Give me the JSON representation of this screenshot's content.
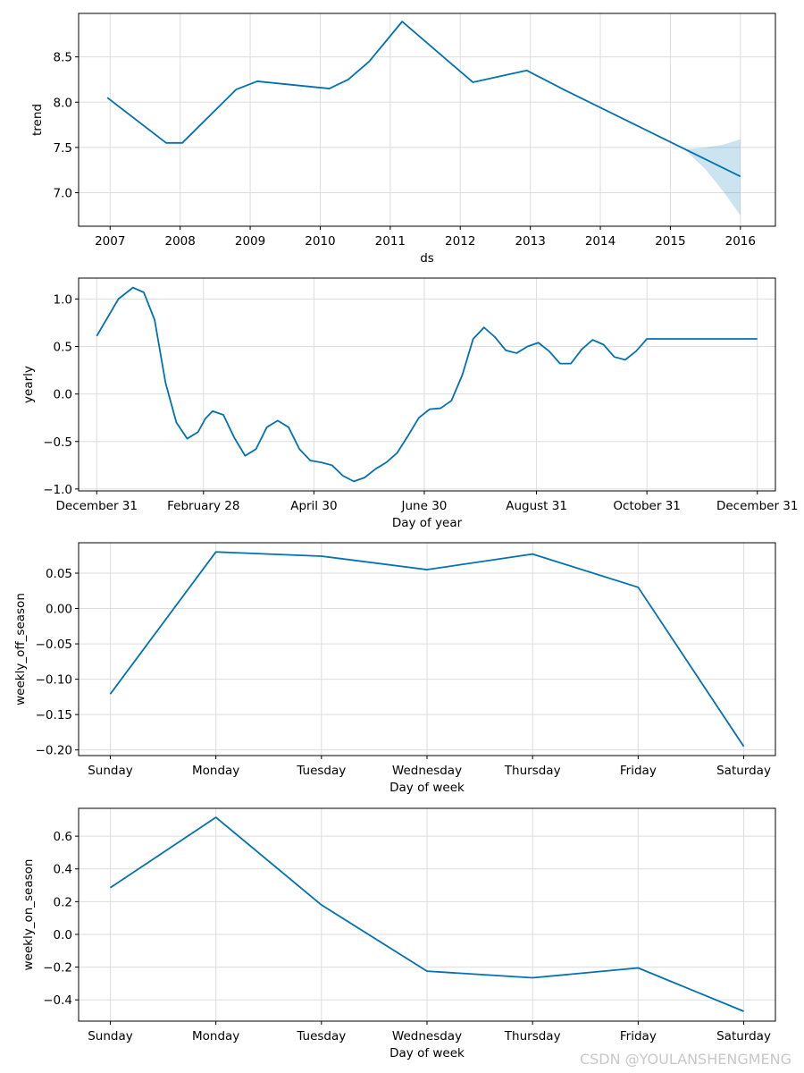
{
  "colors": {
    "line": "#0072b2",
    "band": "#0072b2",
    "grid": "#dddddd",
    "watermark": "#c8c8c8"
  },
  "watermark": "CSDN @YOULANSHENGMENG",
  "chart_data": [
    {
      "id": "trend",
      "type": "line",
      "xlabel": "ds",
      "ylabel": "trend",
      "xlim": [
        2006.55,
        2016.5
      ],
      "ylim": [
        6.63,
        8.98
      ],
      "xticks": [
        2007,
        2008,
        2009,
        2010,
        2011,
        2012,
        2013,
        2014,
        2015,
        2016
      ],
      "xtick_labels": [
        "2007",
        "2008",
        "2009",
        "2010",
        "2011",
        "2012",
        "2013",
        "2014",
        "2015",
        "2016"
      ],
      "yticks": [
        7.0,
        7.5,
        8.0,
        8.5
      ],
      "ytick_labels": [
        "7.0",
        "7.5",
        "8.0",
        "8.5"
      ],
      "grid": true,
      "series": [
        {
          "name": "trend",
          "x": [
            2006.96,
            2007.8,
            2008.03,
            2008.8,
            2009.1,
            2010.13,
            2010.4,
            2010.7,
            2011.17,
            2012.18,
            2012.95,
            2013.5,
            2014.0,
            2014.5,
            2015.0,
            2015.5,
            2016.0
          ],
          "y": [
            8.05,
            7.55,
            7.55,
            8.14,
            8.23,
            8.15,
            8.25,
            8.45,
            8.89,
            8.22,
            8.35,
            8.13,
            7.94,
            7.75,
            7.56,
            7.37,
            7.18
          ]
        }
      ],
      "uncertainty": {
        "x": [
          2015.2,
          2015.5,
          2015.75,
          2016.0
        ],
        "upper": [
          7.48,
          7.5,
          7.53,
          7.59
        ],
        "lower": [
          7.48,
          7.26,
          7.02,
          6.75
        ]
      }
    },
    {
      "id": "yearly",
      "type": "line",
      "xlabel": "Day of year",
      "ylabel": "yearly",
      "xlim": [
        -10,
        375
      ],
      "ylim": [
        -1.02,
        1.22
      ],
      "xticks": [
        0,
        59,
        120,
        181,
        243,
        304,
        365
      ],
      "xtick_labels": [
        "December 31",
        "February 28",
        "April 30",
        "June 30",
        "August 31",
        "October 31",
        "December 31"
      ],
      "yticks": [
        -1.0,
        -0.5,
        0.0,
        0.5,
        1.0
      ],
      "ytick_labels": [
        "−1.0",
        "−0.5",
        "0.0",
        "0.5",
        "1.0"
      ],
      "grid": true,
      "series": [
        {
          "name": "yearly",
          "x": [
            0,
            12,
            20,
            26,
            32,
            38,
            44,
            50,
            56,
            60,
            64,
            70,
            76,
            82,
            88,
            94,
            100,
            106,
            112,
            118,
            124,
            130,
            136,
            142,
            148,
            154,
            160,
            166,
            172,
            178,
            184,
            190,
            196,
            202,
            208,
            214,
            220,
            226,
            232,
            238,
            244,
            250,
            256,
            262,
            268,
            274,
            280,
            286,
            292,
            298,
            304,
            310,
            316,
            322,
            328,
            334,
            340,
            346,
            352,
            358,
            365
          ],
          "y": [
            0.61,
            1.0,
            1.12,
            1.07,
            0.78,
            0.12,
            -0.3,
            -0.47,
            -0.4,
            -0.26,
            -0.18,
            -0.22,
            -0.46,
            -0.65,
            -0.58,
            -0.35,
            -0.28,
            -0.35,
            -0.58,
            -0.7,
            -0.72,
            -0.75,
            -0.86,
            -0.92,
            -0.88,
            -0.79,
            -0.72,
            -0.62,
            -0.44,
            -0.25,
            -0.16,
            -0.15,
            -0.07,
            0.2,
            0.58,
            0.7,
            0.6,
            0.46,
            0.43,
            0.5,
            0.54,
            0.45,
            0.32,
            0.32,
            0.47,
            0.57,
            0.52,
            0.39,
            0.36,
            0.45,
            0.58,
            0.58,
            0.58,
            0.58,
            0.58,
            0.58,
            0.58,
            0.58,
            0.58,
            0.58,
            0.58
          ]
        }
      ]
    },
    {
      "id": "weekly_off_season",
      "type": "line",
      "xlabel": "Day of week",
      "ylabel": "weekly_off_season",
      "xlim": [
        -0.3,
        6.3
      ],
      "ylim": [
        -0.208,
        0.093
      ],
      "xticks": [
        0,
        1,
        2,
        3,
        4,
        5,
        6
      ],
      "xtick_labels": [
        "Sunday",
        "Monday",
        "Tuesday",
        "Wednesday",
        "Thursday",
        "Friday",
        "Saturday"
      ],
      "yticks": [
        -0.2,
        -0.15,
        -0.1,
        -0.05,
        0.0,
        0.05
      ],
      "ytick_labels": [
        "−0.20",
        "−0.15",
        "−0.10",
        "−0.05",
        "0.00",
        "0.05"
      ],
      "grid": true,
      "series": [
        {
          "name": "weekly_off_season",
          "x": [
            0,
            1,
            2,
            3,
            4,
            5,
            6
          ],
          "y": [
            -0.121,
            0.08,
            0.074,
            0.055,
            0.077,
            0.03,
            -0.195
          ]
        }
      ]
    },
    {
      "id": "weekly_on_season",
      "type": "line",
      "xlabel": "Day of week",
      "ylabel": "weekly_on_season",
      "xlim": [
        -0.3,
        6.3
      ],
      "ylim": [
        -0.53,
        0.77
      ],
      "xticks": [
        0,
        1,
        2,
        3,
        4,
        5,
        6
      ],
      "xtick_labels": [
        "Sunday",
        "Monday",
        "Tuesday",
        "Wednesday",
        "Thursday",
        "Friday",
        "Saturday"
      ],
      "yticks": [
        -0.4,
        -0.2,
        0.0,
        0.2,
        0.4,
        0.6
      ],
      "ytick_labels": [
        "−0.4",
        "−0.2",
        "0.0",
        "0.2",
        "0.4",
        "0.6"
      ],
      "grid": true,
      "series": [
        {
          "name": "weekly_on_season",
          "x": [
            0,
            1,
            2,
            3,
            4,
            5,
            6
          ],
          "y": [
            0.285,
            0.715,
            0.18,
            -0.225,
            -0.265,
            -0.205,
            -0.47
          ]
        }
      ]
    }
  ]
}
